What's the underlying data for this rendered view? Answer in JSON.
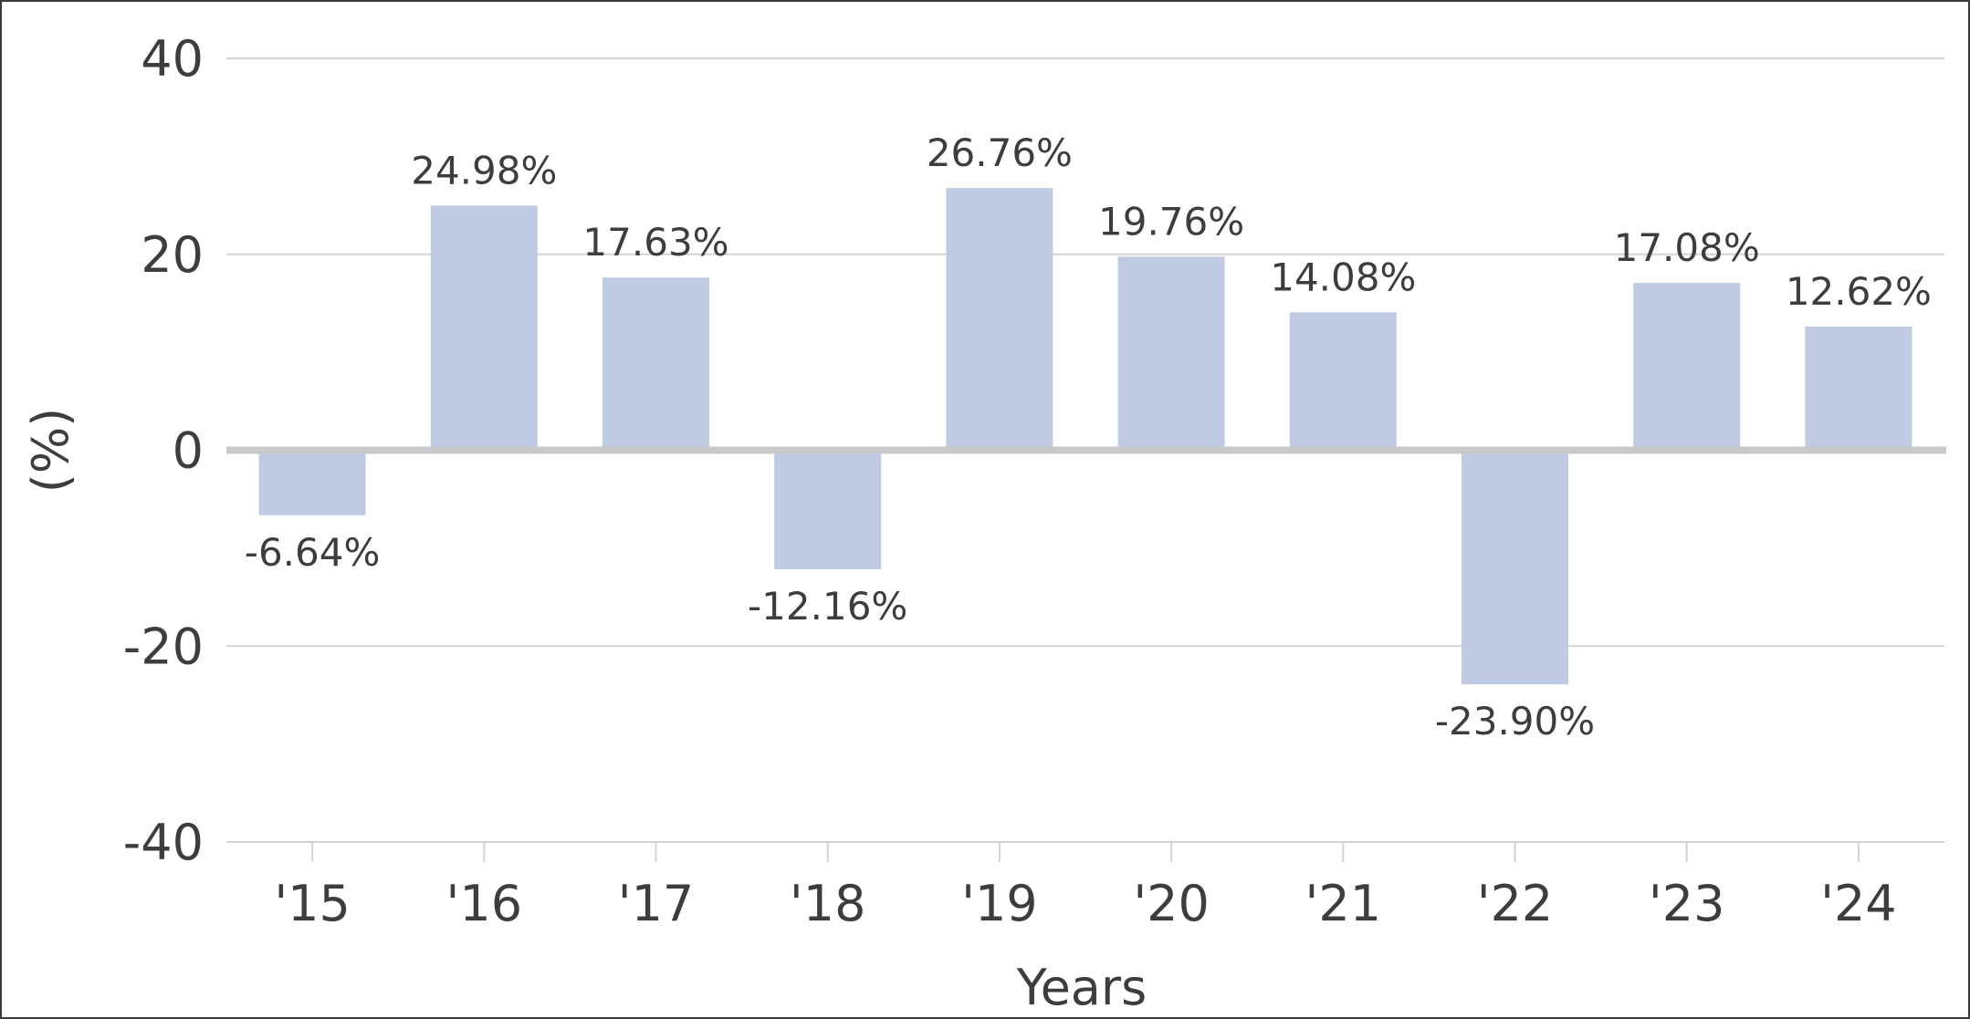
{
  "chart_data": {
    "type": "bar",
    "categories": [
      "'15",
      "'16",
      "'17",
      "'18",
      "'19",
      "'20",
      "'21",
      "'22",
      "'23",
      "'24"
    ],
    "values": [
      -6.64,
      24.98,
      17.63,
      -12.16,
      26.76,
      19.76,
      14.08,
      -23.9,
      17.08,
      12.62
    ],
    "data_labels": [
      "-6.64%",
      "24.98%",
      "17.63%",
      "-12.16%",
      "26.76%",
      "19.76%",
      "14.08%",
      "-23.90%",
      "17.08%",
      "12.62%"
    ],
    "xlabel": "Years",
    "ylabel": "(%)",
    "ylim": [
      -40,
      40
    ],
    "yticks": [
      40,
      20,
      0,
      -20,
      -40
    ],
    "ytick_labels": [
      "40",
      "20",
      "0",
      "-20",
      "-40"
    ],
    "grid": true,
    "colors": {
      "bar": "#bfcbe3",
      "grid": "#d3d3d3",
      "zero_line": "#c8c8c8",
      "text": "#3d3d3d"
    }
  }
}
